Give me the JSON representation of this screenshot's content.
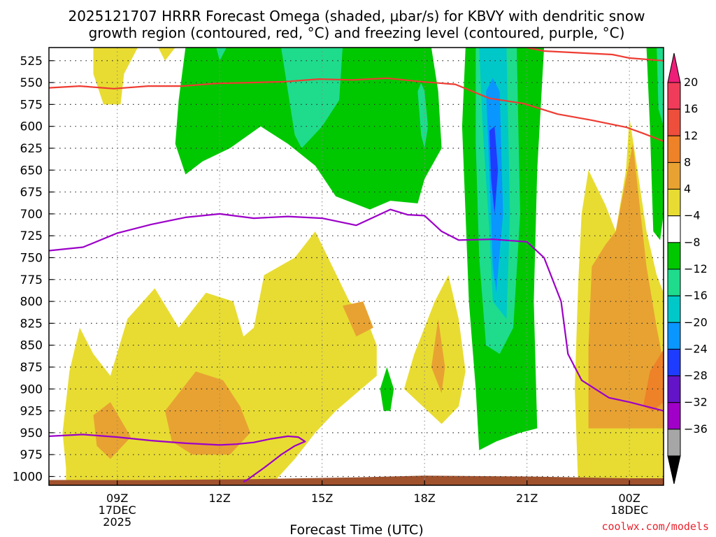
{
  "chart_data": {
    "type": "heatmap",
    "title_lines": [
      "2025121707 HRRR Forecast Omega (shaded, μbar/s) for KBVY with dendritic snow",
      "growth region (contoured, red, °C) and freezing level (contoured, purple, °C)"
    ],
    "xlabel": "Forecast Time (UTC)",
    "credit": "coolwx.com/models",
    "x_range_hours": [
      7,
      25
    ],
    "y_range_hpa": [
      1010,
      510
    ],
    "y_ticks": [
      525,
      550,
      575,
      600,
      625,
      650,
      675,
      700,
      725,
      750,
      775,
      800,
      825,
      850,
      875,
      900,
      925,
      950,
      975,
      1000
    ],
    "x_ticks": [
      {
        "hour": 9,
        "lines": [
          "09Z",
          "17DEC",
          "2025"
        ]
      },
      {
        "hour": 12,
        "lines": [
          "12Z"
        ]
      },
      {
        "hour": 15,
        "lines": [
          "15Z"
        ]
      },
      {
        "hour": 18,
        "lines": [
          "18Z"
        ]
      },
      {
        "hour": 21,
        "lines": [
          "21Z"
        ]
      },
      {
        "hour": 24,
        "lines": [
          "00Z",
          "18DEC"
        ]
      }
    ],
    "colorbar": {
      "labels": [
        "20",
        "16",
        "12",
        "8",
        "4",
        "−4",
        "−8",
        "−12",
        "−16",
        "−20",
        "−24",
        "−28",
        "−32",
        "−36"
      ],
      "colors": [
        "#f03c5a",
        "#ee4e3c",
        "#ee8228",
        "#e8a232",
        "#e8dc32",
        "#ffffff",
        "#00c800",
        "#1edc8c",
        "#00c8c8",
        "#0a96ff",
        "#1e3cff",
        "#6414c8",
        "#a000c8",
        "#a6a6a6"
      ],
      "top_arrow": "#ee1e78",
      "bottom_arrow": "#000000"
    },
    "regions": [
      {
        "color": "#e8dc32",
        "pts": [
          [
            8.3,
            510
          ],
          [
            8.3,
            540
          ],
          [
            8.6,
            575
          ],
          [
            9.1,
            575
          ],
          [
            9.2,
            540
          ],
          [
            9.6,
            510
          ]
        ]
      },
      {
        "color": "#e8dc32",
        "pts": [
          [
            10.2,
            510
          ],
          [
            10.4,
            525
          ],
          [
            10.7,
            510
          ]
        ]
      },
      {
        "color": "#00c800",
        "pts": [
          [
            11.0,
            510
          ],
          [
            10.8,
            570
          ],
          [
            10.7,
            620
          ],
          [
            11.0,
            655
          ],
          [
            11.5,
            640
          ],
          [
            12.3,
            625
          ],
          [
            13.2,
            600
          ],
          [
            14.0,
            620
          ],
          [
            14.8,
            645
          ],
          [
            15.4,
            680
          ],
          [
            16.4,
            695
          ],
          [
            17.0,
            685
          ],
          [
            17.8,
            688
          ],
          [
            18.0,
            660
          ],
          [
            18.5,
            625
          ],
          [
            18.4,
            560
          ],
          [
            18.2,
            510
          ]
        ]
      },
      {
        "color": "#1edc8c",
        "pts": [
          [
            11.9,
            510
          ],
          [
            12.0,
            525
          ],
          [
            12.2,
            510
          ]
        ]
      },
      {
        "color": "#1edc8c",
        "pts": [
          [
            13.8,
            510
          ],
          [
            14.0,
            560
          ],
          [
            14.2,
            610
          ],
          [
            14.4,
            625
          ],
          [
            15.0,
            600
          ],
          [
            15.5,
            570
          ],
          [
            15.6,
            510
          ]
        ]
      },
      {
        "color": "#1edc8c",
        "pts": [
          [
            17.8,
            560
          ],
          [
            17.9,
            610
          ],
          [
            18.0,
            625
          ],
          [
            18.1,
            600
          ],
          [
            18.0,
            560
          ],
          [
            17.9,
            550
          ]
        ]
      },
      {
        "color": "#00c800",
        "pts": [
          [
            19.2,
            510
          ],
          [
            19.1,
            600
          ],
          [
            19.2,
            700
          ],
          [
            19.3,
            800
          ],
          [
            19.5,
            900
          ],
          [
            19.6,
            970
          ],
          [
            20.1,
            960
          ],
          [
            20.8,
            950
          ],
          [
            21.3,
            945
          ],
          [
            21.2,
            800
          ],
          [
            21.3,
            650
          ],
          [
            21.5,
            510
          ]
        ]
      },
      {
        "color": "#1edc8c",
        "pts": [
          [
            19.5,
            510
          ],
          [
            19.5,
            620
          ],
          [
            19.6,
            750
          ],
          [
            19.8,
            850
          ],
          [
            20.2,
            860
          ],
          [
            20.6,
            830
          ],
          [
            20.8,
            700
          ],
          [
            20.7,
            510
          ]
        ]
      },
      {
        "color": "#00c8c8",
        "pts": [
          [
            19.6,
            510
          ],
          [
            19.7,
            600
          ],
          [
            19.9,
            720
          ],
          [
            20.0,
            800
          ],
          [
            20.4,
            820
          ],
          [
            20.5,
            700
          ],
          [
            20.4,
            510
          ]
        ]
      },
      {
        "color": "#0a96ff",
        "pts": [
          [
            19.8,
            560
          ],
          [
            19.9,
            650
          ],
          [
            20.0,
            760
          ],
          [
            20.1,
            790
          ],
          [
            20.3,
            700
          ],
          [
            20.2,
            560
          ],
          [
            20.0,
            545
          ]
        ]
      },
      {
        "color": "#1e3cff",
        "pts": [
          [
            19.9,
            605
          ],
          [
            19.95,
            660
          ],
          [
            20.05,
            700
          ],
          [
            20.15,
            650
          ],
          [
            20.05,
            600
          ]
        ]
      },
      {
        "color": "#00c800",
        "pts": [
          [
            24.5,
            510
          ],
          [
            24.6,
            600
          ],
          [
            24.7,
            720
          ],
          [
            24.9,
            730
          ],
          [
            25.0,
            700
          ],
          [
            25.0,
            510
          ]
        ]
      },
      {
        "color": "#1edc8c",
        "pts": [
          [
            24.8,
            510
          ],
          [
            24.85,
            580
          ],
          [
            25.0,
            600
          ],
          [
            25.0,
            510
          ]
        ]
      },
      {
        "color": "#e8dc32",
        "pts": [
          [
            7.5,
            1010
          ],
          [
            7.5,
            990
          ],
          [
            7.4,
            950
          ],
          [
            7.6,
            880
          ],
          [
            7.9,
            830
          ],
          [
            8.3,
            860
          ],
          [
            8.8,
            885
          ],
          [
            9.3,
            820
          ],
          [
            10.1,
            785
          ],
          [
            10.8,
            830
          ],
          [
            11.6,
            790
          ],
          [
            12.4,
            800
          ],
          [
            12.7,
            840
          ],
          [
            13.0,
            830
          ],
          [
            13.3,
            770
          ],
          [
            14.2,
            750
          ],
          [
            14.8,
            720
          ],
          [
            15.3,
            760
          ],
          [
            15.8,
            800
          ],
          [
            16.3,
            820
          ],
          [
            16.6,
            850
          ],
          [
            16.6,
            885
          ],
          [
            16.0,
            905
          ],
          [
            15.4,
            925
          ],
          [
            14.8,
            950
          ],
          [
            14.2,
            980
          ],
          [
            13.5,
            1010
          ]
        ]
      },
      {
        "color": "#e8a232",
        "pts": [
          [
            8.4,
            965
          ],
          [
            8.3,
            930
          ],
          [
            8.8,
            915
          ],
          [
            9.4,
            955
          ],
          [
            8.8,
            980
          ]
        ]
      },
      {
        "color": "#e8a232",
        "pts": [
          [
            10.6,
            960
          ],
          [
            10.4,
            925
          ],
          [
            11.3,
            880
          ],
          [
            12.1,
            890
          ],
          [
            12.6,
            920
          ],
          [
            12.9,
            950
          ],
          [
            12.3,
            975
          ],
          [
            11.2,
            975
          ]
        ]
      },
      {
        "color": "#e8a232",
        "pts": [
          [
            15.6,
            805
          ],
          [
            16.2,
            800
          ],
          [
            16.5,
            830
          ],
          [
            16.0,
            840
          ]
        ]
      },
      {
        "color": "#e8dc32",
        "pts": [
          [
            17.4,
            900
          ],
          [
            17.7,
            860
          ],
          [
            18.3,
            800
          ],
          [
            18.7,
            770
          ],
          [
            19.0,
            820
          ],
          [
            19.2,
            880
          ],
          [
            19.0,
            920
          ],
          [
            18.5,
            940
          ]
        ]
      },
      {
        "color": "#e8a232",
        "pts": [
          [
            18.2,
            875
          ],
          [
            18.4,
            820
          ],
          [
            18.6,
            875
          ],
          [
            18.5,
            905
          ]
        ]
      },
      {
        "color": "#00c800",
        "pts": [
          [
            16.8,
            925
          ],
          [
            16.7,
            900
          ],
          [
            16.9,
            875
          ],
          [
            17.1,
            900
          ],
          [
            17.0,
            925
          ]
        ]
      },
      {
        "color": "#e8dc32",
        "pts": [
          [
            22.5,
            1010
          ],
          [
            22.4,
            900
          ],
          [
            22.5,
            780
          ],
          [
            22.6,
            700
          ],
          [
            22.8,
            650
          ],
          [
            23.3,
            690
          ],
          [
            23.6,
            720
          ],
          [
            23.9,
            650
          ],
          [
            24.0,
            590
          ],
          [
            24.2,
            640
          ],
          [
            24.5,
            720
          ],
          [
            24.8,
            770
          ],
          [
            25.0,
            790
          ],
          [
            25.0,
            1010
          ]
        ]
      },
      {
        "color": "#e8a232",
        "pts": [
          [
            22.8,
            945
          ],
          [
            22.8,
            850
          ],
          [
            22.9,
            760
          ],
          [
            23.3,
            735
          ],
          [
            23.6,
            720
          ],
          [
            23.9,
            660
          ],
          [
            24.1,
            620
          ],
          [
            24.3,
            690
          ],
          [
            24.5,
            760
          ],
          [
            24.8,
            830
          ],
          [
            25.0,
            870
          ],
          [
            25.0,
            945
          ],
          [
            23.8,
            945
          ]
        ]
      },
      {
        "color": "#ee8228",
        "pts": [
          [
            24.4,
            920
          ],
          [
            24.6,
            880
          ],
          [
            25.0,
            855
          ],
          [
            25.0,
            915
          ],
          [
            24.7,
            925
          ]
        ]
      },
      {
        "color": "#a0522d",
        "pts": [
          [
            7.0,
            1010
          ],
          [
            7.0,
            1004
          ],
          [
            10.0,
            1004
          ],
          [
            13.0,
            1003
          ],
          [
            16.0,
            1001
          ],
          [
            18.0,
            999
          ],
          [
            21.0,
            1000
          ],
          [
            24.0,
            1002
          ],
          [
            25.0,
            1002
          ],
          [
            25.0,
            1010
          ]
        ]
      }
    ],
    "lines": [
      {
        "color": "#ee3c32",
        "pts": [
          [
            7.0,
            556
          ],
          [
            7.9,
            554
          ],
          [
            8.9,
            557
          ],
          [
            9.9,
            554
          ],
          [
            10.9,
            554
          ],
          [
            11.9,
            551
          ],
          [
            12.9,
            550
          ],
          [
            13.9,
            549
          ],
          [
            14.9,
            546
          ],
          [
            15.9,
            547
          ],
          [
            16.9,
            545
          ],
          [
            17.9,
            549
          ],
          [
            18.9,
            552
          ],
          [
            19.9,
            568
          ],
          [
            20.9,
            574
          ],
          [
            21.9,
            586
          ],
          [
            22.9,
            593
          ],
          [
            23.9,
            601
          ],
          [
            24.4,
            608
          ],
          [
            25.0,
            617
          ]
        ]
      },
      {
        "color": "#ee3c32",
        "pts": [
          [
            21.0,
            510
          ],
          [
            21.5,
            514
          ],
          [
            22.5,
            516
          ],
          [
            23.5,
            518
          ],
          [
            24.0,
            522
          ],
          [
            25.0,
            525
          ]
        ]
      },
      {
        "color": "#9c00c8",
        "pts": [
          [
            7.0,
            742
          ],
          [
            8.0,
            738
          ],
          [
            9.0,
            722
          ],
          [
            10.0,
            712
          ],
          [
            11.0,
            704
          ],
          [
            12.0,
            700
          ],
          [
            13.0,
            705
          ],
          [
            14.0,
            703
          ],
          [
            15.0,
            705
          ],
          [
            16.0,
            713
          ],
          [
            17.0,
            695
          ],
          [
            17.5,
            701
          ],
          [
            18.0,
            702
          ],
          [
            18.5,
            720
          ],
          [
            19.0,
            730
          ],
          [
            20.0,
            729
          ],
          [
            21.0,
            732
          ],
          [
            21.5,
            750
          ],
          [
            22.0,
            800
          ],
          [
            22.2,
            860
          ],
          [
            22.6,
            890
          ],
          [
            23.0,
            900
          ],
          [
            23.4,
            910
          ],
          [
            24.0,
            915
          ],
          [
            25.0,
            925
          ]
        ]
      },
      {
        "color": "#9c00c8",
        "pts": [
          [
            7.0,
            954
          ],
          [
            8.0,
            952
          ],
          [
            9.0,
            955
          ],
          [
            10.0,
            959
          ],
          [
            11.0,
            962
          ],
          [
            12.0,
            964
          ],
          [
            12.5,
            963
          ],
          [
            13.0,
            961
          ],
          [
            13.5,
            957
          ],
          [
            14.0,
            954
          ],
          [
            14.3,
            955
          ],
          [
            14.5,
            960
          ],
          [
            14.2,
            965
          ],
          [
            13.8,
            975
          ],
          [
            13.3,
            990
          ],
          [
            12.8,
            1004
          ],
          [
            12.7,
            1006
          ]
        ]
      }
    ]
  }
}
